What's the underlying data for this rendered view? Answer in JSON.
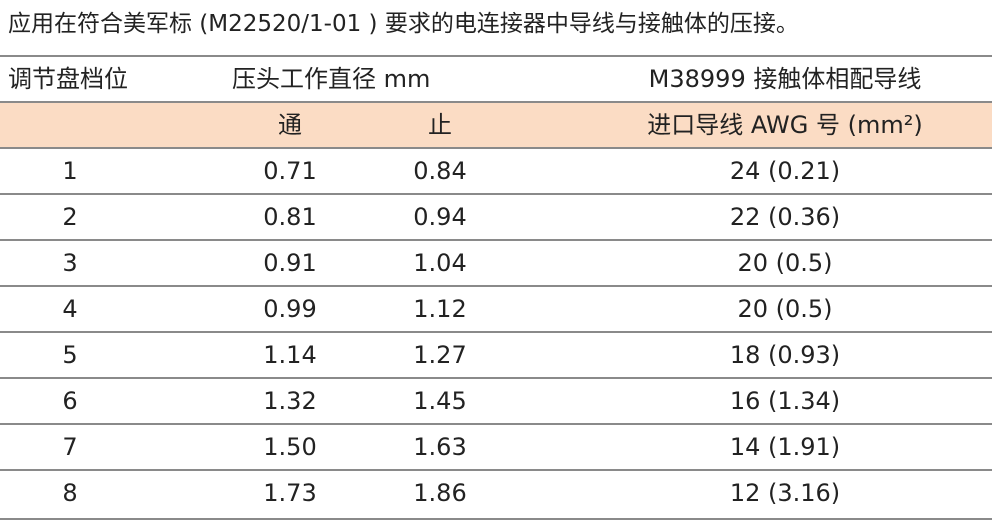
{
  "title": "应用在符合美军标 (M22520/1-01 ) 要求的电连接器中导线与接触体的压接。",
  "table": {
    "header_row_1": [
      "调节盘档位",
      "压头工作直径 mm",
      "M38999 接触体相配导线"
    ],
    "header_row_2": [
      "通",
      "止",
      "进口导线 AWG 号 (mm²)"
    ],
    "rows": [
      [
        "1",
        "0.71",
        "0.84",
        "24 (0.21)"
      ],
      [
        "2",
        "0.81",
        "0.94",
        "22 (0.36)"
      ],
      [
        "3",
        "0.91",
        "1.04",
        "20 (0.5)"
      ],
      [
        "4",
        "0.99",
        "1.12",
        "20 (0.5)"
      ],
      [
        "5",
        "1.14",
        "1.27",
        "18 (0.93)"
      ],
      [
        "6",
        "1.32",
        "1.45",
        "16 (1.34)"
      ],
      [
        "7",
        "1.50",
        "1.63",
        "14 (1.91)"
      ],
      [
        "8",
        "1.73",
        "1.86",
        "12 (3.16)"
      ]
    ]
  }
}
